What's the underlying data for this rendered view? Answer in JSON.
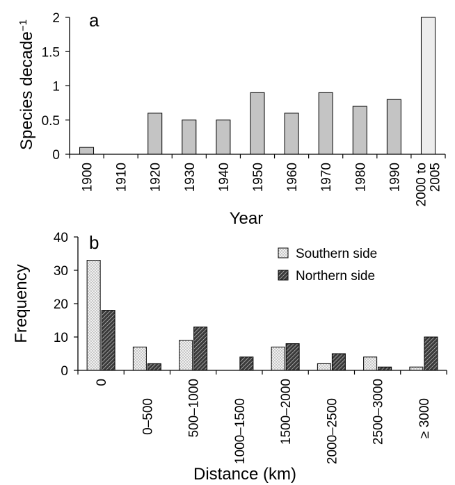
{
  "chart_data": [
    {
      "type": "bar",
      "panel_label": "a",
      "xlabel": "Year",
      "ylabel": "Species decade",
      "ylabel_superscript": "−1",
      "ylim": [
        0,
        2
      ],
      "yticks": [
        "0",
        "0.5",
        "1",
        "1.5",
        "2"
      ],
      "categories": [
        "1900",
        "1910",
        "1920",
        "1930",
        "1940",
        "1950",
        "1960",
        "1970",
        "1980",
        "1990",
        "2000 to 2005"
      ],
      "values": [
        0.1,
        0,
        0.6,
        0.5,
        0.5,
        0.9,
        0.6,
        0.9,
        0.7,
        0.8,
        2.0
      ],
      "bar_colors": [
        "#c4c4c4",
        "#c4c4c4",
        "#c4c4c4",
        "#c4c4c4",
        "#c4c4c4",
        "#c4c4c4",
        "#c4c4c4",
        "#c4c4c4",
        "#c4c4c4",
        "#c4c4c4",
        "#ededed"
      ]
    },
    {
      "type": "bar",
      "panel_label": "b",
      "xlabel": "Distance (km)",
      "ylabel": "Frequency",
      "ylim": [
        0,
        40
      ],
      "yticks": [
        "0",
        "10",
        "20",
        "30",
        "40"
      ],
      "categories": [
        "0",
        "0–500",
        "500–1000",
        "1000–1500",
        "1500–2000",
        "2000–2500",
        "2500–3000",
        "≥ 3000"
      ],
      "legend_position": "top-right",
      "series": [
        {
          "name": "Southern side",
          "values": [
            33,
            7,
            9,
            0,
            7,
            2,
            4,
            1
          ],
          "color": "#eeeeee"
        },
        {
          "name": "Northern side",
          "values": [
            18,
            2,
            13,
            4,
            8,
            5,
            1,
            10
          ],
          "color": "#555555"
        }
      ]
    }
  ]
}
